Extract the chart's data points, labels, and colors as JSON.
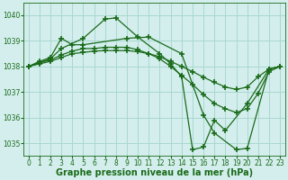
{
  "background_color": "#d4eeed",
  "grid_color": "#a8d8d0",
  "line_color": "#1a6b1a",
  "marker": "+",
  "marker_size": 4,
  "marker_lw": 1.2,
  "linewidth": 0.9,
  "xlabel": "Graphe pression niveau de la mer (hPa)",
  "xlabel_fontsize": 7,
  "xtick_fontsize": 5.5,
  "ytick_fontsize": 5.5,
  "ylim": [
    1034.5,
    1040.5
  ],
  "yticks": [
    1035,
    1036,
    1037,
    1038,
    1039,
    1040
  ],
  "xlim": [
    -0.5,
    23.5
  ],
  "xticks": [
    0,
    1,
    2,
    3,
    4,
    5,
    6,
    7,
    8,
    9,
    10,
    11,
    12,
    13,
    14,
    15,
    16,
    17,
    18,
    19,
    20,
    21,
    22,
    23
  ],
  "series": [
    {
      "x": [
        0,
        2,
        3,
        5,
        7,
        8,
        10,
        12,
        13,
        14,
        15,
        16,
        17,
        18,
        20,
        22,
        23
      ],
      "y": [
        1038.0,
        1038.3,
        1038.7,
        1039.1,
        1039.85,
        1039.9,
        1039.15,
        1038.5,
        1038.1,
        1037.6,
        1034.75,
        1034.85,
        1035.9,
        1035.5,
        1036.55,
        1037.9,
        1038.0
      ]
    },
    {
      "x": [
        0,
        1,
        2,
        3,
        4,
        5,
        9,
        11,
        14,
        16,
        17,
        19,
        20,
        22,
        23
      ],
      "y": [
        1038.0,
        1038.2,
        1038.35,
        1039.1,
        1038.85,
        1038.85,
        1039.1,
        1039.15,
        1038.5,
        1036.1,
        1035.4,
        1034.75,
        1034.8,
        1037.9,
        1038.0
      ]
    },
    {
      "x": [
        0,
        1,
        2,
        3,
        4,
        5,
        6,
        7,
        8,
        9,
        10,
        11,
        12,
        13,
        14,
        15,
        16,
        17,
        18,
        19,
        20,
        21,
        22,
        23
      ],
      "y": [
        1038.0,
        1038.15,
        1038.25,
        1038.45,
        1038.6,
        1038.7,
        1038.7,
        1038.75,
        1038.75,
        1038.75,
        1038.65,
        1038.5,
        1038.3,
        1038.0,
        1037.65,
        1037.3,
        1036.9,
        1036.55,
        1036.35,
        1036.2,
        1036.35,
        1036.95,
        1037.8,
        1038.0
      ]
    },
    {
      "x": [
        0,
        1,
        2,
        3,
        4,
        5,
        6,
        7,
        8,
        9,
        10,
        11,
        12,
        13,
        14,
        15,
        16,
        17,
        18,
        19,
        20,
        21,
        22,
        23
      ],
      "y": [
        1038.0,
        1038.1,
        1038.2,
        1038.35,
        1038.5,
        1038.55,
        1038.6,
        1038.62,
        1038.62,
        1038.62,
        1038.58,
        1038.5,
        1038.38,
        1038.2,
        1038.0,
        1037.8,
        1037.58,
        1037.38,
        1037.2,
        1037.1,
        1037.2,
        1037.6,
        1037.9,
        1038.0
      ]
    }
  ]
}
